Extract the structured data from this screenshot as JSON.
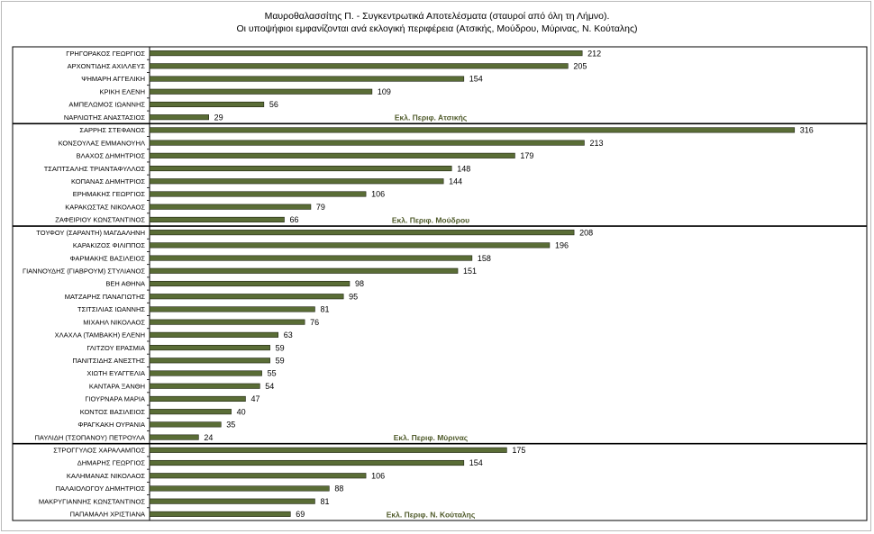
{
  "chart_data": {
    "type": "bar",
    "orientation": "horizontal",
    "title": "Μαυροθαλασσίτης Π. - Συγκεντρωτικά Αποτελέσματα (σταυροί από όλη τη Λήμνο).",
    "subtitle": "Οι υποψήφιοι εμφανίζονται ανά εκλογική περιφέρεια (Ατσικής, Μούδρου, Μύρινας, Ν. Κούταλης)",
    "bar_color": "#5a6d36",
    "grid": false,
    "groups": [
      {
        "label": "Εκλ. Περιφ. Ατσικής",
        "categories": [
          "ΓΡΗΓΟΡΑΚΟΣ ΓΕΩΡΓΙΟΣ",
          "ΑΡΧΟΝΤΙΔΗΣ ΑΧΙΛΛΕΥΣ",
          "ΨΗΜΑΡΗ ΑΓΓΕΛΙΚΗ",
          "ΚΡΙΚΗ ΕΛΕΝΗ",
          "ΑΜΠΕΛΩΜΟΣ ΙΩΑΝΝΗΣ",
          "ΝΑΡΛΙΩΤΗΣ ΑΝΑΣΤΑΣΙΟΣ"
        ],
        "values": [
          212,
          205,
          154,
          109,
          56,
          29
        ]
      },
      {
        "label": "Εκλ. Περιφ.  Μούδρου",
        "categories": [
          "ΣΑΡΡΗΣ ΣΤΕΦΑΝΟΣ",
          "ΚΟΝΣΟΥΛΑΣ ΕΜΜΑΝΟΥΗΛ",
          "ΒΛΑΧΟΣ ΔΗΜΗΤΡΙΟΣ",
          "ΤΣΑΠΤΣΑΛΗΣ ΤΡΙΑΝΤΑΦΥΛΛΟΣ",
          "ΚΟΠΑΝΑΣ ΔΗΜΗΤΡΙΟΣ",
          "ΕΡΗΜΑΚΗΣ ΓΕΩΡΓΙΟΣ",
          "ΚΑΡΑΚΩΣΤΑΣ ΝΙΚΟΛΑΟΣ",
          "ΖΑΦΕΙΡΙΟΥ ΚΩΝΣΤΑΝΤΙΝΟΣ"
        ],
        "values": [
          316,
          213,
          179,
          148,
          144,
          106,
          79,
          66
        ]
      },
      {
        "label": "Εκλ. Περιφ. Μύρινας",
        "categories": [
          "ΤΟΥΦΟΥ (ΣΑΡΑΝΤΗ) ΜΑΓΔΑΛΗΝΗ",
          "ΚΑΡΑΚΙΖΟΣ ΦΙΛΙΠΠΟΣ",
          "ΦΑΡΜΑΚΗΣ ΒΑΣΙΛΕΙΟΣ",
          "ΓΙΑΝΝΟΥΔΗΣ (ΓΙΑΒΡΟΥΜ) ΣΤΥΛΙΑΝΟΣ",
          "ΒΕΗ ΑΘΗΝΑ",
          "ΜΑΤΖΑΡΗΣ ΠΑΝΑΓΙΩΤΗΣ",
          "ΤΣΙΤΣΙΛΙΑΣ ΙΩΑΝΝΗΣ",
          "ΜΙΧΑΗΛ ΝΙΚΟΛΑΟΣ",
          "ΧΛΑΧΛΑ (ΤΑΜΒΑΚΗ) ΕΛΕΝΗ",
          "ΓΛΙΤΖΟΥ ΕΡΑΣΜΙΑ",
          "ΠΑΝΙΤΣΙΔΗΣ ΑΝΕΣΤΗΣ",
          "ΧΙΩΤΗ ΕΥΑΓΓΕΛΙΑ",
          "ΚΑΝΤΑΡΑ ΞΑΝΘΗ",
          "ΓΙΟΥΡΝΑΡΑ ΜΑΡΙΑ",
          "ΚΟΝΤΟΣ ΒΑΣΙΛΕΙΟΣ",
          "ΦΡΑΓΚΑΚΗ ΟΥΡΑΝΙΑ",
          "ΠΑΥΛΙΔΗ (ΤΣΟΠΑΝΟΥ) ΠΕΤΡΟΥΛΑ"
        ],
        "values": [
          208,
          196,
          158,
          151,
          98,
          95,
          81,
          76,
          63,
          59,
          59,
          55,
          54,
          47,
          40,
          35,
          24
        ]
      },
      {
        "label": "Εκλ. Περιφ. Ν. Κούταλης",
        "categories": [
          "ΣΤΡΟΓΓΥΛΟΣ ΧΑΡΑΛΑΜΠΟΣ",
          "ΔΗΜΑΡΗΣ ΓΕΩΡΓΙΟΣ",
          "ΚΑΛΗΜΑΝΑΣ ΝΙΚΟΛΑΟΣ",
          "ΠΑΛΑΙΟΛΟΓΟΥ ΔΗΜΗΤΡΙΟΣ",
          "ΜΑΚΡΥΓΙΑΝΝΗΣ ΚΩΝΣΤΑΝΤΙΝΟΣ",
          "ΠΑΠΑΜΑΛΗ ΧΡΙΣΤΙΑΝΑ"
        ],
        "values": [
          175,
          154,
          106,
          88,
          81,
          69
        ]
      }
    ]
  }
}
